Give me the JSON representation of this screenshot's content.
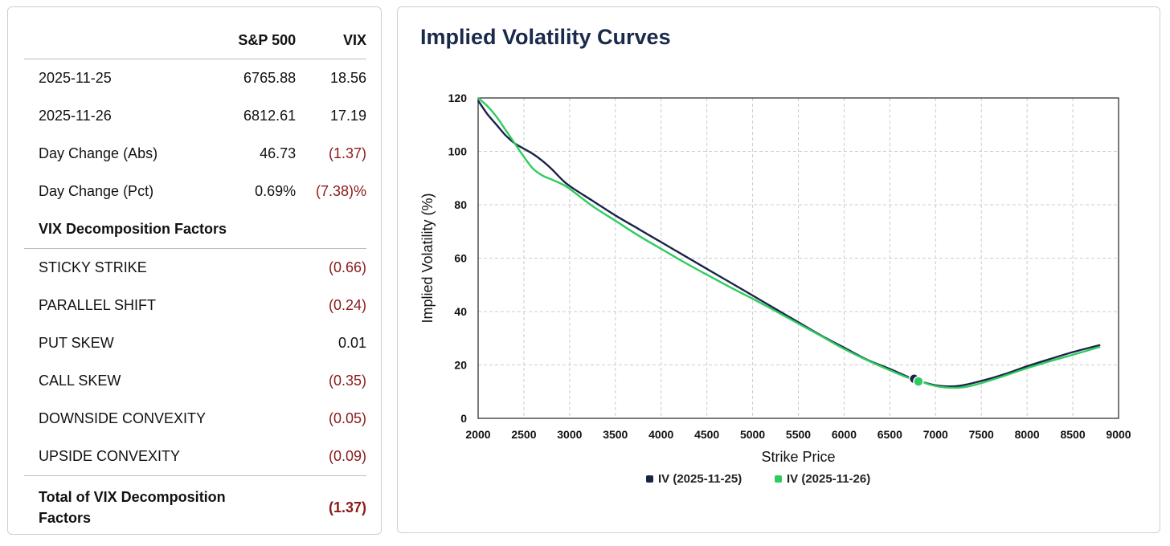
{
  "table": {
    "header": {
      "label": "",
      "sp500": "S&P 500",
      "vix": "VIX"
    },
    "rows": [
      {
        "label": "2025-11-25",
        "sp500": "6765.88",
        "vix": "18.56"
      },
      {
        "label": "2025-11-26",
        "sp500": "6812.61",
        "vix": "17.19"
      },
      {
        "label": "Day Change (Abs)",
        "sp500": "46.73",
        "vix": "(1.37)"
      },
      {
        "label": "Day Change (Pct)",
        "sp500": "0.69%",
        "vix": "(7.38)%"
      }
    ],
    "factors_title": "VIX Decomposition Factors",
    "factors": [
      {
        "label": "STICKY STRIKE",
        "value": "(0.66)"
      },
      {
        "label": "PARALLEL SHIFT",
        "value": "(0.24)"
      },
      {
        "label": "PUT SKEW",
        "value": "0.01"
      },
      {
        "label": "CALL SKEW",
        "value": "(0.35)"
      },
      {
        "label": "DOWNSIDE CONVEXITY",
        "value": "(0.05)"
      },
      {
        "label": "UPSIDE CONVEXITY",
        "value": "(0.09)"
      }
    ],
    "total": {
      "label": "Total of VIX Decomposition Factors",
      "value": "(1.37)"
    },
    "colors": {
      "negative": "#8b1a1a"
    }
  },
  "chart_data": {
    "type": "line",
    "title": "Implied Volatility Curves",
    "xlabel": "Strike Price",
    "ylabel": "Implied Volatility (%)",
    "xlim": [
      2000,
      9000
    ],
    "ylim": [
      0,
      120
    ],
    "xticks": [
      2000,
      2500,
      3000,
      3500,
      4000,
      4500,
      5000,
      5500,
      6000,
      6500,
      7000,
      7500,
      8000,
      8500,
      9000
    ],
    "yticks": [
      0,
      20,
      40,
      60,
      80,
      100,
      120
    ],
    "grid": true,
    "legend": "bottom-center",
    "series": [
      {
        "name": "IV (2025-11-25)",
        "color": "#1a2447",
        "x": [
          2000,
          2100,
          2200,
          2300,
          2400,
          2500,
          2600,
          2700,
          2800,
          2900,
          3000,
          3250,
          3500,
          3750,
          4000,
          4250,
          4500,
          4750,
          5000,
          5250,
          5500,
          5750,
          6000,
          6250,
          6500,
          6700,
          6800,
          6900,
          7000,
          7100,
          7200,
          7300,
          7500,
          7750,
          8000,
          8250,
          8500,
          8800
        ],
        "y": [
          119,
          114,
          110,
          106,
          103,
          101,
          99,
          96.5,
          93.5,
          90,
          87,
          81.5,
          76,
          71,
          66,
          61,
          56,
          51,
          46,
          41,
          36,
          31,
          26.5,
          22,
          18.5,
          15.5,
          14.3,
          13.2,
          12.4,
          12,
          12,
          12.4,
          14,
          16.5,
          19.5,
          22.2,
          24.8,
          27.5
        ]
      },
      {
        "name": "IV (2025-11-26)",
        "color": "#2ecc5f",
        "x": [
          2000,
          2100,
          2200,
          2300,
          2400,
          2500,
          2600,
          2700,
          2800,
          2900,
          3000,
          3250,
          3500,
          3750,
          4000,
          4250,
          4500,
          4750,
          5000,
          5250,
          5500,
          5750,
          6000,
          6250,
          6500,
          6700,
          6850,
          6950,
          7050,
          7150,
          7250,
          7350,
          7500,
          7750,
          8000,
          8250,
          8500,
          8800
        ],
        "y": [
          120,
          117,
          113,
          108,
          103,
          98,
          93.5,
          91,
          89.5,
          88,
          86,
          79.5,
          74,
          68.5,
          63.5,
          58.5,
          53.8,
          49.2,
          44.8,
          40.2,
          35.5,
          30.8,
          26,
          21.8,
          18,
          15.2,
          13.6,
          12.5,
          11.8,
          11.5,
          11.5,
          11.9,
          13.2,
          15.9,
          18.8,
          21.4,
          23.8,
          26.8
        ]
      }
    ],
    "markers": [
      {
        "series": "IV (2025-11-25)",
        "x": 6765.88,
        "y": 14.8
      },
      {
        "series": "IV (2025-11-26)",
        "x": 6812.61,
        "y": 13.8
      }
    ]
  }
}
